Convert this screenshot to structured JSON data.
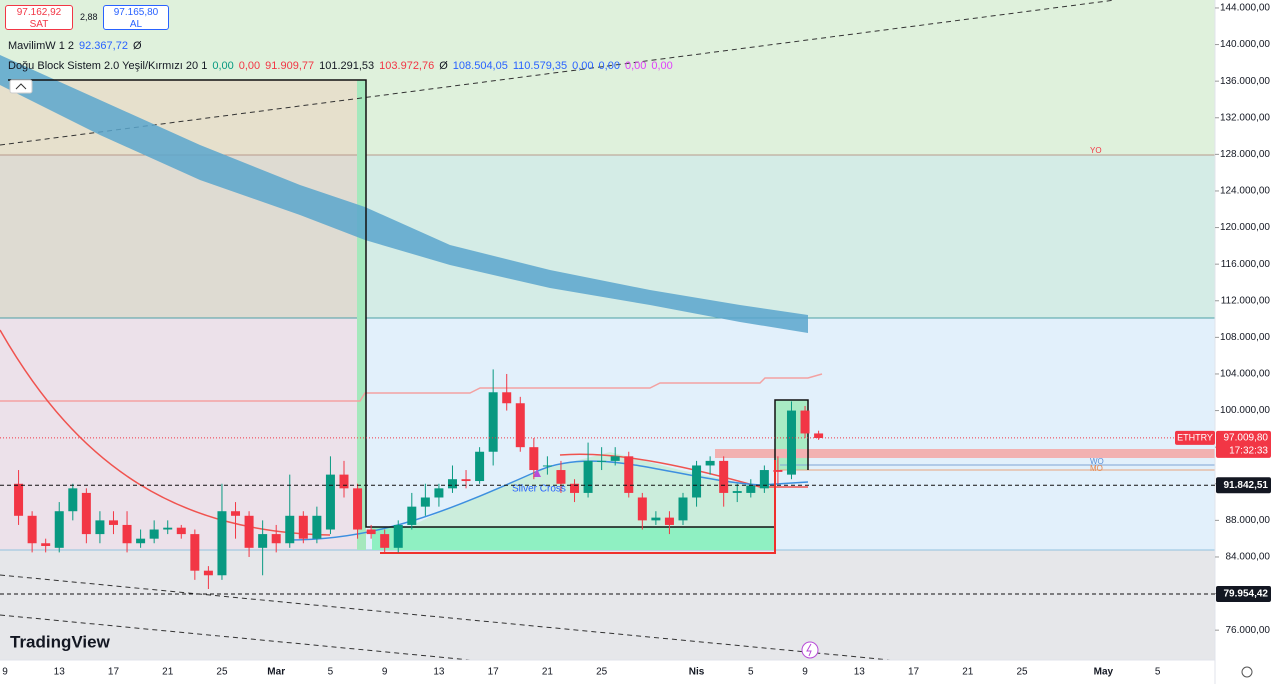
{
  "chart_data": {
    "type": "candlestick",
    "symbol": "ETHTRY",
    "up_color": "#089981",
    "down_color": "#f23645",
    "open": [
      92000.0,
      88500.0,
      85500.0,
      85000.0,
      89000.0,
      91000.0,
      86500.0,
      88000.0,
      87500.0,
      85500.0,
      86000.0,
      87000.0,
      87200.0,
      86500.0,
      82500.0,
      82000.0,
      89000.0,
      88500.0,
      85000.0,
      86500.0,
      85500.0,
      88500.0,
      86000.0,
      87000.0,
      93000.0,
      91500.0,
      87000.0,
      86500.0,
      85000.0,
      87500.0,
      89500.0,
      90500.0,
      91500.0,
      92500.0,
      92300.0,
      95500.0,
      102000.0,
      100800.0,
      96000.0,
      94000.0,
      93500.0,
      92000.0,
      91000.0,
      94500.0,
      94500.0,
      95000.0,
      90500.0,
      88000.0,
      88300.0,
      88000.0,
      90500.0,
      94000.0,
      94500.0,
      91000.0,
      91000.0,
      91500.0,
      93500.0,
      93000.0,
      100000.0,
      97500.0
    ],
    "high": [
      93500.0,
      89000.0,
      86000.0,
      90000.0,
      92000.0,
      91500.0,
      89000.0,
      89000.0,
      89000.0,
      87000.0,
      88000.0,
      88000.0,
      87500.0,
      87000.0,
      83000.0,
      92000.0,
      90000.0,
      89000.0,
      88000.0,
      87500.0,
      93000.0,
      89000.0,
      89500.0,
      95000.0,
      94500.0,
      92000.0,
      87500.0,
      87000.0,
      88000.0,
      91000.0,
      92000.0,
      92000.0,
      94000.0,
      93500.0,
      96000.0,
      104500.0,
      104000.0,
      101500.0,
      97000.0,
      95000.0,
      94500.0,
      92500.0,
      96500.0,
      96000.0,
      96000.0,
      95500.0,
      91000.0,
      89000.0,
      89000.0,
      91000.0,
      94500.0,
      95000.0,
      95000.0,
      92000.0,
      92500.0,
      94000.0,
      95000.0,
      101000.0,
      100500.0,
      97800.0
    ],
    "low": [
      87500.0,
      84500.0,
      84500.0,
      84500.0,
      88000.0,
      85500.0,
      85500.0,
      86500.0,
      84500.0,
      85000.0,
      85500.0,
      86500.0,
      86000.0,
      81500.0,
      80500.0,
      81500.0,
      86000.0,
      84000.0,
      82000.0,
      84500.0,
      85000.0,
      85500.0,
      85500.0,
      86500.0,
      90500.0,
      86000.0,
      86000.0,
      84500.0,
      84500.0,
      87000.0,
      88500.0,
      89500.0,
      91000.0,
      91500.0,
      92000.0,
      94000.0,
      100000.0,
      95500.0,
      92500.0,
      93000.0,
      91000.0,
      90000.0,
      90500.0,
      93500.0,
      94000.0,
      90500.0,
      87000.0,
      87500.0,
      86500.0,
      87500.0,
      89500.0,
      93000.0,
      89500.0,
      90000.0,
      90500.0,
      91000.0,
      92000.0,
      92500.0,
      97000.0,
      96800.0
    ],
    "close": [
      88500.0,
      85500.0,
      85200.0,
      89000.0,
      91500.0,
      86500.0,
      88000.0,
      87500.0,
      85500.0,
      86000.0,
      87000.0,
      87200.0,
      86500.0,
      82500.0,
      82000.0,
      89000.0,
      88500.0,
      85000.0,
      86500.0,
      85500.0,
      88500.0,
      86000.0,
      88500.0,
      93000.0,
      91500.0,
      87000.0,
      86500.0,
      85000.0,
      87500.0,
      89500.0,
      90500.0,
      91500.0,
      92500.0,
      92300.0,
      95500.0,
      102000.0,
      100800.0,
      96000.0,
      93500.0,
      94000.0,
      92000.0,
      91000.0,
      94500.0,
      94500.0,
      95000.0,
      91000.0,
      88000.0,
      88300.0,
      87500.0,
      90500.0,
      94000.0,
      94500.0,
      91000.0,
      91200.0,
      91800.0,
      93500.0,
      93300.0,
      100000.0,
      97500.0,
      97000.0
    ],
    "x_labels": [
      "9",
      "13",
      "17",
      "21",
      "25",
      "Mar",
      "5",
      "9",
      "13",
      "17",
      "21",
      "25",
      "Nis",
      "5",
      "9",
      "13",
      "17",
      "21",
      "25",
      "May",
      "5"
    ],
    "ylim": [
      72740,
      144870
    ],
    "yticks": [
      {
        "value": 76000,
        "label": "76.000,00"
      },
      {
        "value": 80000,
        "label": "80.000,00"
      },
      {
        "value": 84000,
        "label": "84.000,00"
      },
      {
        "value": 88000,
        "label": "88.000,00"
      },
      {
        "value": 92000,
        "label": "92.000,00"
      },
      {
        "value": 96000,
        "label": "96.000,00"
      },
      {
        "value": 100000,
        "label": "100.000,00"
      },
      {
        "value": 104000,
        "label": "104.000,00"
      },
      {
        "value": 108000,
        "label": "108.000,00"
      },
      {
        "value": 112000,
        "label": "112.000,00"
      },
      {
        "value": 116000,
        "label": "116.000,00"
      },
      {
        "value": 120000,
        "label": "120.000,00"
      },
      {
        "value": 124000,
        "label": "124.000,00"
      },
      {
        "value": 128000,
        "label": "128.000,00"
      },
      {
        "value": 132000,
        "label": "132.000,00"
      },
      {
        "value": 136000,
        "label": "136.000,00"
      },
      {
        "value": 140000,
        "label": "140.000,00"
      },
      {
        "value": 144000,
        "label": "144.000,00"
      }
    ],
    "last_price": {
      "value": 97009.8,
      "label": "97.009,80",
      "countdown": "17:32:33"
    },
    "price_lines": [
      {
        "value": 91842.51,
        "label": "91.842,51"
      },
      {
        "value": 79954.42,
        "label": "79.954,42"
      }
    ],
    "annotations": {
      "silver_cross": "Silver Cross",
      "yearly": "YO",
      "weekly": "WO",
      "monthly": "MO"
    }
  },
  "header": {
    "sell_price": "97.162,92",
    "sell_label": "SAT",
    "spread": "2,88",
    "buy_price": "97.165,80",
    "buy_label": "AL",
    "indicators": [
      {
        "name": "MavilimW 1 2",
        "values": [
          {
            "text": "92.367,72",
            "color": "#2962ff"
          },
          {
            "text": "Ø",
            "color": "#131722"
          }
        ]
      },
      {
        "name": "Doğu Block Sistem 2.0 Yeşil/Kırmızı 20 1",
        "values": [
          {
            "text": "0,00",
            "color": "#089981"
          },
          {
            "text": "0,00",
            "color": "#f23645"
          },
          {
            "text": "91.909,77",
            "color": "#f23645"
          },
          {
            "text": "101.291,53",
            "color": "#131722"
          },
          {
            "text": "103.972,76",
            "color": "#f23645"
          },
          {
            "text": "Ø",
            "color": "#131722"
          },
          {
            "text": "108.504,05",
            "color": "#2962ff"
          },
          {
            "text": "110.579,35",
            "color": "#2962ff"
          },
          {
            "text": "0,00",
            "color": "#2962ff"
          },
          {
            "text": "0,00",
            "color": "#2962ff"
          },
          {
            "text": "0,00",
            "color": "#e040fb"
          },
          {
            "text": "0,00",
            "color": "#e040fb"
          }
        ]
      }
    ]
  },
  "branding": "TradingView"
}
